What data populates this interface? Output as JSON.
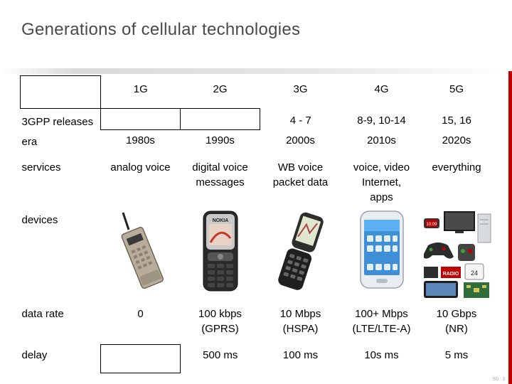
{
  "title": "Generations of cellular technologies",
  "generations": [
    "1G",
    "2G",
    "3G",
    "4G",
    "5G"
  ],
  "rows": {
    "releases": {
      "label": "3GPP releases",
      "values": [
        "",
        "",
        "4 - 7",
        "8-9, 10-14",
        "15, 16"
      ]
    },
    "era": {
      "label": "era",
      "values": [
        "1980s",
        "1990s",
        "2000s",
        "2010s",
        "2020s"
      ]
    },
    "services": {
      "label": "services",
      "values": [
        [
          "analog voice"
        ],
        [
          "digital voice",
          "messages"
        ],
        [
          "WB voice",
          "packet data"
        ],
        [
          "voice, video",
          "Internet,",
          "apps"
        ],
        [
          "everything"
        ]
      ]
    },
    "devices": {
      "label": "devices"
    },
    "data_rate": {
      "label": "data rate",
      "values": [
        [
          "0"
        ],
        [
          "100 kbps",
          "(GPRS)"
        ],
        [
          "10 Mbps",
          "(HSPA)"
        ],
        [
          "100+ Mbps",
          "(LTE/LTE-A)"
        ],
        [
          "10 Gbps",
          "(NR)"
        ]
      ]
    },
    "delay": {
      "label": "delay",
      "values": [
        "",
        "500 ms",
        "100 ms",
        "10s ms",
        "5 ms"
      ]
    }
  },
  "device_icons": [
    "brick-phone-icon",
    "feature-phone-icon",
    "flip-phone-icon",
    "smartphone-icon",
    "iot-devices-icon"
  ],
  "device_text": {
    "feature_phone_brand": "NOKIA",
    "tv_label": "RADIO",
    "thermostat_value": "24"
  },
  "footer": "5G · 3",
  "colors": {
    "accent": "#c00000",
    "title": "#4a4a4a"
  }
}
